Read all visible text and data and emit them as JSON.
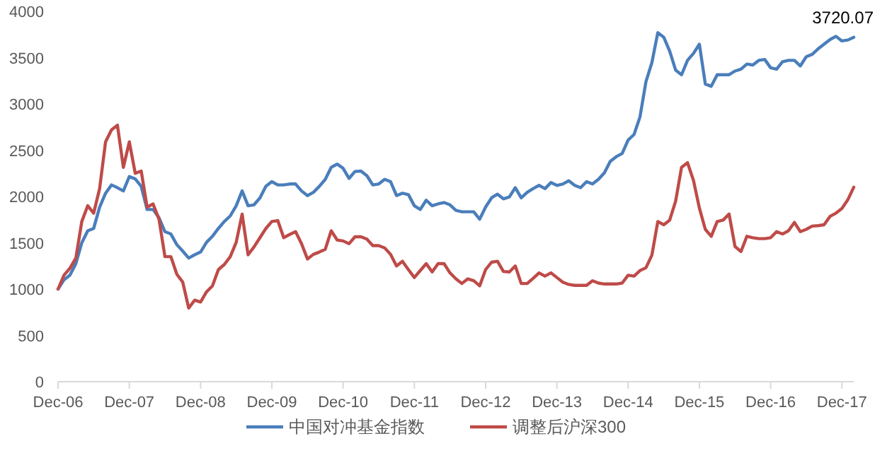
{
  "chart_data": {
    "type": "line",
    "x": [
      "2006-12",
      "2007-01",
      "2007-02",
      "2007-03",
      "2007-04",
      "2007-05",
      "2007-06",
      "2007-07",
      "2007-08",
      "2007-09",
      "2007-10",
      "2007-11",
      "2007-12",
      "2008-01",
      "2008-02",
      "2008-03",
      "2008-04",
      "2008-05",
      "2008-06",
      "2008-07",
      "2008-08",
      "2008-09",
      "2008-10",
      "2008-11",
      "2008-12",
      "2009-01",
      "2009-02",
      "2009-03",
      "2009-04",
      "2009-05",
      "2009-06",
      "2009-07",
      "2009-08",
      "2009-09",
      "2009-10",
      "2009-11",
      "2009-12",
      "2010-01",
      "2010-02",
      "2010-03",
      "2010-04",
      "2010-05",
      "2010-06",
      "2010-07",
      "2010-08",
      "2010-09",
      "2010-10",
      "2010-11",
      "2010-12",
      "2011-01",
      "2011-02",
      "2011-03",
      "2011-04",
      "2011-05",
      "2011-06",
      "2011-07",
      "2011-08",
      "2011-09",
      "2011-10",
      "2011-11",
      "2011-12",
      "2012-01",
      "2012-02",
      "2012-03",
      "2012-04",
      "2012-05",
      "2012-06",
      "2012-07",
      "2012-08",
      "2012-09",
      "2012-10",
      "2012-11",
      "2012-12",
      "2013-01",
      "2013-02",
      "2013-03",
      "2013-04",
      "2013-05",
      "2013-06",
      "2013-07",
      "2013-08",
      "2013-09",
      "2013-10",
      "2013-11",
      "2013-12",
      "2014-01",
      "2014-02",
      "2014-03",
      "2014-04",
      "2014-05",
      "2014-06",
      "2014-07",
      "2014-08",
      "2014-09",
      "2014-10",
      "2014-11",
      "2014-12",
      "2015-01",
      "2015-02",
      "2015-03",
      "2015-04",
      "2015-05",
      "2015-06",
      "2015-07",
      "2015-08",
      "2015-09",
      "2015-10",
      "2015-11",
      "2015-12",
      "2016-01",
      "2016-02",
      "2016-03",
      "2016-04",
      "2016-05",
      "2016-06",
      "2016-07",
      "2016-08",
      "2016-09",
      "2016-10",
      "2016-11",
      "2016-12",
      "2017-01",
      "2017-02",
      "2017-03",
      "2017-04",
      "2017-05",
      "2017-06",
      "2017-07",
      "2017-08",
      "2017-09",
      "2017-10",
      "2017-11",
      "2017-12",
      "2018-01",
      "2018-02"
    ],
    "series": [
      {
        "name": "中国对冲基金指数",
        "color": "#4a7ebb",
        "values": [
          1000,
          1100,
          1150,
          1275,
          1500,
          1630,
          1655,
          1885,
          2035,
          2125,
          2095,
          2060,
          2215,
          2190,
          2110,
          1860,
          1860,
          1770,
          1620,
          1595,
          1480,
          1410,
          1335,
          1370,
          1400,
          1505,
          1570,
          1655,
          1730,
          1790,
          1900,
          2060,
          1900,
          1910,
          1985,
          2110,
          2160,
          2125,
          2125,
          2135,
          2135,
          2060,
          2010,
          2045,
          2110,
          2185,
          2315,
          2350,
          2305,
          2195,
          2270,
          2275,
          2225,
          2125,
          2135,
          2185,
          2160,
          2010,
          2035,
          2020,
          1900,
          1860,
          1960,
          1900,
          1920,
          1935,
          1910,
          1850,
          1835,
          1835,
          1835,
          1755,
          1885,
          1985,
          2025,
          1975,
          1995,
          2095,
          1985,
          2045,
          2085,
          2120,
          2085,
          2150,
          2120,
          2135,
          2170,
          2120,
          2095,
          2160,
          2135,
          2185,
          2255,
          2380,
          2430,
          2465,
          2610,
          2670,
          2860,
          3240,
          3445,
          3770,
          3720,
          3570,
          3365,
          3315,
          3470,
          3545,
          3645,
          3215,
          3190,
          3315,
          3315,
          3315,
          3355,
          3375,
          3430,
          3420,
          3470,
          3480,
          3390,
          3375,
          3455,
          3470,
          3470,
          3410,
          3510,
          3535,
          3595,
          3645,
          3695,
          3730,
          3680,
          3690,
          3720.07
        ]
      },
      {
        "name": "调整后沪深300",
        "color": "#be4b48",
        "values": [
          1000,
          1150,
          1225,
          1335,
          1730,
          1900,
          1820,
          2085,
          2590,
          2720,
          2770,
          2315,
          2590,
          2250,
          2275,
          1885,
          1920,
          1755,
          1350,
          1350,
          1160,
          1075,
          795,
          880,
          860,
          970,
          1035,
          1210,
          1265,
          1350,
          1505,
          1810,
          1370,
          1455,
          1555,
          1655,
          1730,
          1740,
          1555,
          1590,
          1620,
          1490,
          1325,
          1375,
          1400,
          1430,
          1630,
          1530,
          1520,
          1490,
          1565,
          1565,
          1540,
          1470,
          1470,
          1445,
          1375,
          1250,
          1300,
          1210,
          1125,
          1200,
          1275,
          1185,
          1275,
          1275,
          1175,
          1110,
          1060,
          1110,
          1090,
          1035,
          1210,
          1290,
          1300,
          1190,
          1185,
          1250,
          1060,
          1060,
          1115,
          1175,
          1140,
          1175,
          1125,
          1075,
          1050,
          1040,
          1040,
          1040,
          1090,
          1065,
          1055,
          1055,
          1055,
          1065,
          1150,
          1140,
          1200,
          1230,
          1365,
          1730,
          1695,
          1745,
          1950,
          2315,
          2365,
          2175,
          1875,
          1645,
          1570,
          1730,
          1745,
          1810,
          1460,
          1405,
          1570,
          1555,
          1545,
          1545,
          1555,
          1620,
          1595,
          1630,
          1720,
          1620,
          1645,
          1680,
          1685,
          1695,
          1785,
          1820,
          1870,
          1965,
          2100
        ]
      }
    ],
    "xlim": [
      "2006-12",
      "2018-02"
    ],
    "xticks": [
      {
        "value": "2006-12",
        "label": "Dec-06"
      },
      {
        "value": "2007-12",
        "label": "Dec-07"
      },
      {
        "value": "2008-12",
        "label": "Dec-08"
      },
      {
        "value": "2009-12",
        "label": "Dec-09"
      },
      {
        "value": "2010-12",
        "label": "Dec-10"
      },
      {
        "value": "2011-12",
        "label": "Dec-11"
      },
      {
        "value": "2012-12",
        "label": "Dec-12"
      },
      {
        "value": "2013-12",
        "label": "Dec-13"
      },
      {
        "value": "2014-12",
        "label": "Dec-14"
      },
      {
        "value": "2015-12",
        "label": "Dec-15"
      },
      {
        "value": "2016-12",
        "label": "Dec-16"
      },
      {
        "value": "2017-12",
        "label": "Dec-17"
      }
    ],
    "ylim": [
      0,
      4000
    ],
    "yticks": [
      0,
      500,
      1000,
      1500,
      2000,
      2500,
      3000,
      3500,
      4000
    ],
    "annotations": [
      {
        "text": "3720.07",
        "x": "2018-02",
        "y": 3720.07
      }
    ],
    "legend": "bottom",
    "grid": false,
    "marker": "none",
    "line_style": "solid"
  }
}
